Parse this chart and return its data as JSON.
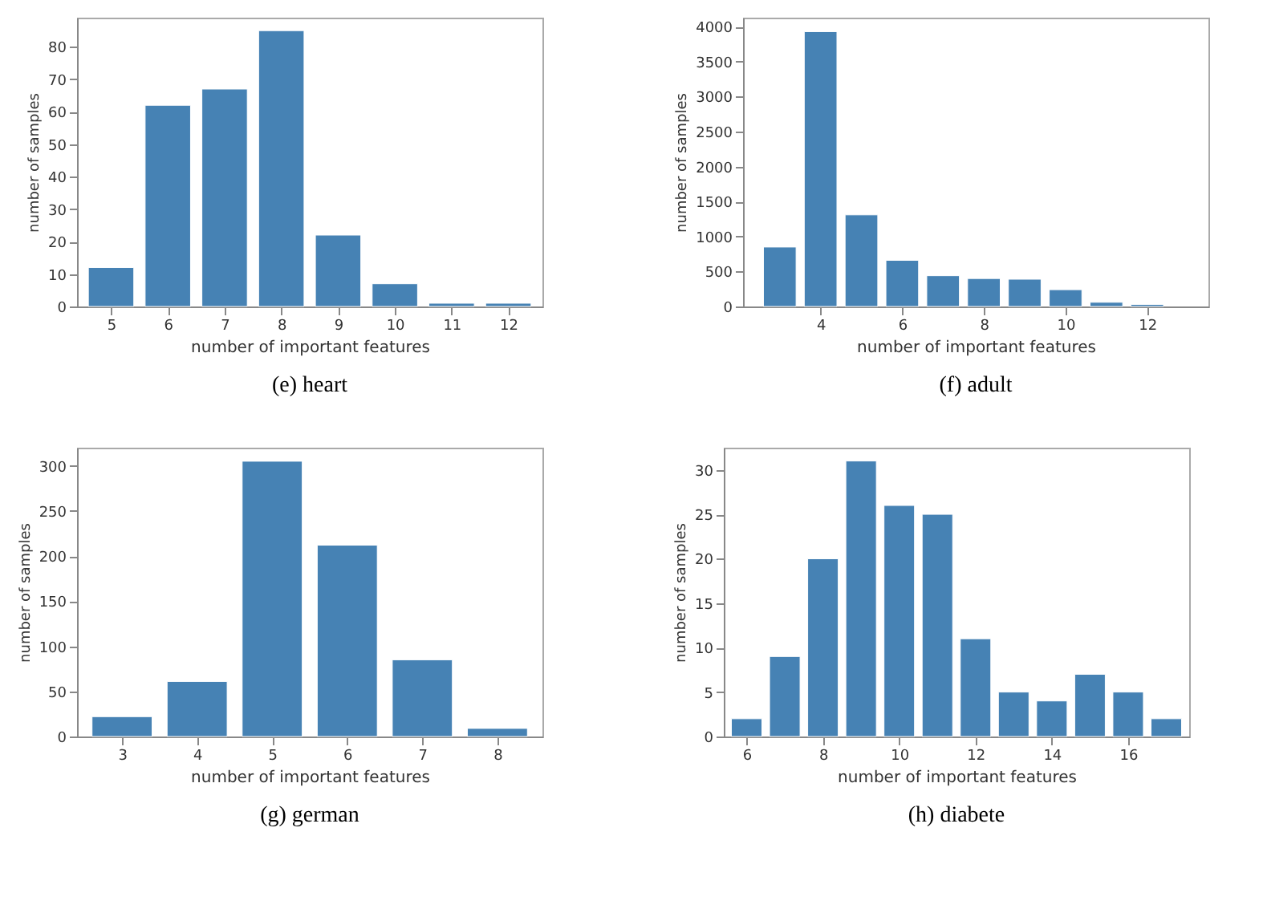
{
  "chart_data": [
    {
      "type": "bar",
      "title": "(e) heart",
      "xlabel": "number of important features",
      "ylabel": "number of samples",
      "x": [
        5,
        6,
        7,
        8,
        9,
        10,
        11,
        12
      ],
      "values": [
        12,
        62,
        67,
        85,
        22,
        7,
        1,
        1
      ],
      "color": "#4682b4",
      "xlim": [
        4.4,
        12.6
      ],
      "xticks": [
        5,
        6,
        7,
        8,
        9,
        10,
        11,
        12
      ],
      "ylim": [
        0,
        89
      ],
      "yticks": [
        0,
        10,
        20,
        30,
        40,
        50,
        60,
        70,
        80
      ],
      "grid": false
    },
    {
      "type": "bar",
      "title": "(f) adult",
      "xlabel": "number of important features",
      "ylabel": "number of samples",
      "x": [
        3,
        4,
        5,
        6,
        7,
        8,
        9,
        10,
        11,
        12
      ],
      "values": [
        850,
        3930,
        1310,
        660,
        440,
        400,
        390,
        240,
        60,
        30
      ],
      "color": "#4682b4",
      "xlim": [
        2.1,
        13.5
      ],
      "xticks": [
        4,
        6,
        8,
        10,
        12
      ],
      "ylim": [
        0,
        4130
      ],
      "yticks": [
        0,
        500,
        1000,
        1500,
        2000,
        2500,
        3000,
        3500,
        4000
      ],
      "grid": false
    },
    {
      "type": "bar",
      "title": "(g) german",
      "xlabel": "number of important features",
      "ylabel": "number of samples",
      "x": [
        3,
        4,
        5,
        6,
        7,
        8
      ],
      "values": [
        22,
        61,
        305,
        212,
        85,
        9
      ],
      "color": "#4682b4",
      "xlim": [
        2.4,
        8.6
      ],
      "xticks": [
        3,
        4,
        5,
        6,
        7,
        8
      ],
      "ylim": [
        0,
        320
      ],
      "yticks": [
        0,
        50,
        100,
        150,
        200,
        250,
        300
      ],
      "grid": false
    },
    {
      "type": "bar",
      "title": "(h) diabete",
      "xlabel": "number of important features",
      "ylabel": "number of samples",
      "x": [
        6,
        7,
        8,
        9,
        10,
        11,
        12,
        13,
        14,
        15,
        16,
        17
      ],
      "values": [
        2,
        9,
        20,
        31,
        26,
        25,
        11,
        5,
        4,
        7,
        5,
        2
      ],
      "color": "#4682b4",
      "xlim": [
        5.4,
        17.6
      ],
      "xticks": [
        6,
        8,
        10,
        12,
        14,
        16
      ],
      "ylim": [
        0,
        32.5
      ],
      "yticks": [
        0,
        5,
        10,
        15,
        20,
        25,
        30
      ],
      "grid": false
    }
  ]
}
